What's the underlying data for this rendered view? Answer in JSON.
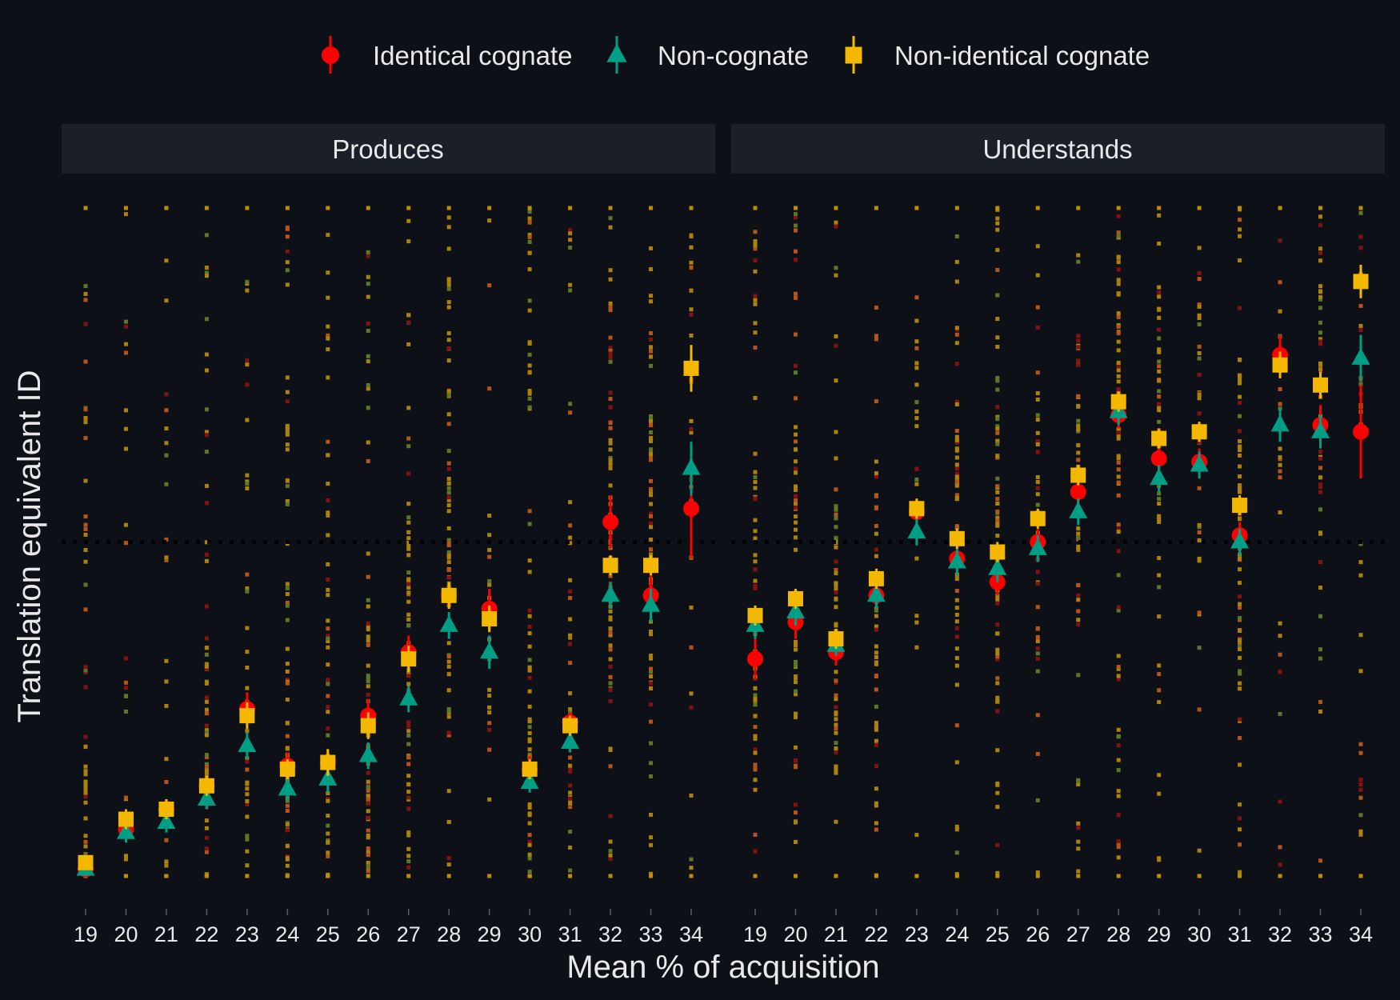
{
  "chart_data": {
    "type": "scatter",
    "xlabel": "Mean % of acquisition",
    "ylabel": "Translation equivalent ID",
    "x_ticks": [
      "19",
      "20",
      "21",
      "22",
      "23",
      "24",
      "25",
      "26",
      "27",
      "28",
      "29",
      "30",
      "31",
      "32",
      "33",
      "34"
    ],
    "ylim": [
      -1,
      1
    ],
    "reference_line_y": 0,
    "grid": false,
    "legend_position": "top",
    "legend": [
      {
        "name": "Identical cognate",
        "color": "#ff0000",
        "shape": "circle"
      },
      {
        "name": "Non-cognate",
        "color": "#009e85",
        "shape": "triangle"
      },
      {
        "name": "Non-identical cognate",
        "color": "#f5b800",
        "shape": "square"
      }
    ],
    "facets": [
      {
        "title": "Produces",
        "series": [
          {
            "name": "Identical cognate",
            "x": [
              19,
              20,
              21,
              22,
              23,
              24,
              25,
              26,
              27,
              28,
              29,
              30,
              31,
              32,
              33,
              34
            ],
            "y": [
              -0.98,
              -0.86,
              -0.8,
              -0.73,
              -0.5,
              -0.67,
              -0.66,
              -0.52,
              -0.33,
              -0.16,
              -0.2,
              -0.68,
              -0.54,
              0.06,
              -0.16,
              0.1
            ],
            "err": [
              0.02,
              0.03,
              0.03,
              0.03,
              0.05,
              0.04,
              0.04,
              0.05,
              0.05,
              0.04,
              0.06,
              0.04,
              0.03,
              0.08,
              0.06,
              0.15
            ]
          },
          {
            "name": "Non-cognate",
            "x": [
              19,
              20,
              21,
              22,
              23,
              24,
              25,
              26,
              27,
              28,
              29,
              30,
              31,
              32,
              33,
              34
            ],
            "y": [
              -0.98,
              -0.87,
              -0.84,
              -0.77,
              -0.61,
              -0.74,
              -0.71,
              -0.64,
              -0.47,
              -0.25,
              -0.33,
              -0.72,
              -0.6,
              -0.16,
              -0.19,
              0.22
            ],
            "err": [
              0.02,
              0.03,
              0.03,
              0.03,
              0.04,
              0.04,
              0.04,
              0.04,
              0.04,
              0.04,
              0.05,
              0.03,
              0.03,
              0.04,
              0.05,
              0.08
            ]
          },
          {
            "name": "Non-identical cognate",
            "x": [
              19,
              20,
              21,
              22,
              23,
              24,
              25,
              26,
              27,
              28,
              29,
              30,
              31,
              32,
              33,
              34
            ],
            "y": [
              -0.96,
              -0.83,
              -0.8,
              -0.73,
              -0.52,
              -0.68,
              -0.66,
              -0.55,
              -0.35,
              -0.16,
              -0.23,
              -0.68,
              -0.55,
              -0.07,
              -0.07,
              0.52
            ],
            "err": [
              0.02,
              0.03,
              0.03,
              0.03,
              0.04,
              0.03,
              0.04,
              0.04,
              0.04,
              0.04,
              0.04,
              0.03,
              0.03,
              0.03,
              0.03,
              0.07
            ]
          }
        ]
      },
      {
        "title": "Understands",
        "series": [
          {
            "name": "Identical cognate",
            "x": [
              19,
              20,
              21,
              22,
              23,
              24,
              25,
              26,
              27,
              28,
              29,
              30,
              31,
              32,
              33,
              34
            ],
            "y": [
              -0.35,
              -0.24,
              -0.33,
              -0.16,
              0.09,
              -0.05,
              -0.12,
              0.0,
              0.15,
              0.38,
              0.25,
              0.24,
              0.02,
              0.56,
              0.35,
              0.33
            ],
            "err": [
              0.06,
              0.05,
              0.04,
              0.04,
              0.04,
              0.04,
              0.04,
              0.04,
              0.04,
              0.04,
              0.04,
              0.04,
              0.04,
              0.06,
              0.06,
              0.14
            ]
          },
          {
            "name": "Non-cognate",
            "x": [
              19,
              20,
              21,
              22,
              23,
              24,
              25,
              26,
              27,
              28,
              29,
              30,
              31,
              32,
              33,
              34
            ],
            "y": [
              -0.25,
              -0.21,
              -0.31,
              -0.16,
              0.03,
              -0.06,
              -0.08,
              -0.02,
              0.09,
              0.39,
              0.19,
              0.23,
              0.0,
              0.35,
              0.33,
              0.55
            ],
            "err": [
              0.04,
              0.04,
              0.03,
              0.04,
              0.04,
              0.04,
              0.04,
              0.04,
              0.04,
              0.04,
              0.04,
              0.04,
              0.04,
              0.05,
              0.05,
              0.07
            ]
          },
          {
            "name": "Non-identical cognate",
            "x": [
              19,
              20,
              21,
              22,
              23,
              24,
              25,
              26,
              27,
              28,
              29,
              30,
              31,
              32,
              33,
              34
            ],
            "y": [
              -0.22,
              -0.17,
              -0.29,
              -0.11,
              0.1,
              0.01,
              -0.03,
              0.07,
              0.2,
              0.42,
              0.31,
              0.33,
              0.11,
              0.53,
              0.47,
              0.78
            ],
            "err": [
              0.03,
              0.03,
              0.03,
              0.03,
              0.03,
              0.03,
              0.03,
              0.03,
              0.03,
              0.03,
              0.03,
              0.03,
              0.03,
              0.04,
              0.04,
              0.05
            ]
          }
        ]
      }
    ]
  }
}
